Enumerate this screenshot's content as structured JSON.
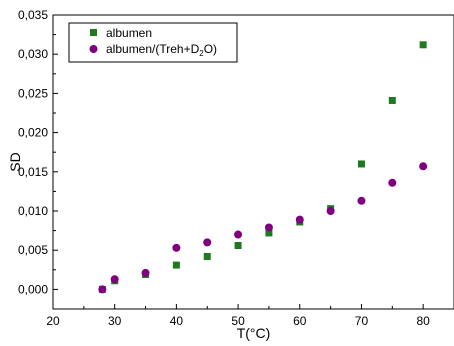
{
  "chart_data": {
    "type": "scatter",
    "title": "",
    "xlabel": "T(°C)",
    "ylabel": "SD",
    "xlim": [
      20,
      85
    ],
    "ylim": [
      -0.0025,
      0.035
    ],
    "xticks": [
      "20",
      "30",
      "40",
      "50",
      "60",
      "70",
      "80"
    ],
    "xtick_values": [
      20,
      30,
      40,
      50,
      60,
      70,
      80
    ],
    "yticks": [
      "0,000",
      "0,005",
      "0,010",
      "0,015",
      "0,020",
      "0,025",
      "0,030",
      "0,035"
    ],
    "ytick_values": [
      0,
      0.005,
      0.01,
      0.015,
      0.02,
      0.025,
      0.03,
      0.035
    ],
    "grid": false,
    "legend_position": "top-left",
    "series": [
      {
        "name": "albumen",
        "marker": "square",
        "color": "#1f7a1f",
        "x": [
          28,
          30,
          35,
          40,
          45,
          50,
          55,
          60,
          65,
          70,
          75,
          80
        ],
        "y": [
          0.0,
          0.0011,
          0.0019,
          0.0031,
          0.0042,
          0.0056,
          0.0072,
          0.0086,
          0.0103,
          0.016,
          0.0241,
          0.0312
        ]
      },
      {
        "name": "albumen/(Treh+D2O)",
        "marker": "circle",
        "color": "#800080",
        "x": [
          28,
          30,
          35,
          40,
          45,
          50,
          55,
          60,
          65,
          70,
          75,
          80
        ],
        "y": [
          0.0,
          0.0013,
          0.0021,
          0.0053,
          0.006,
          0.007,
          0.0079,
          0.0089,
          0.01,
          0.0113,
          0.0136,
          0.0157
        ]
      }
    ]
  },
  "legend": {
    "item1": "albumen",
    "item2_prefix": "albumen/(Treh+D",
    "item2_sub": "2",
    "item2_suffix": "O)"
  }
}
